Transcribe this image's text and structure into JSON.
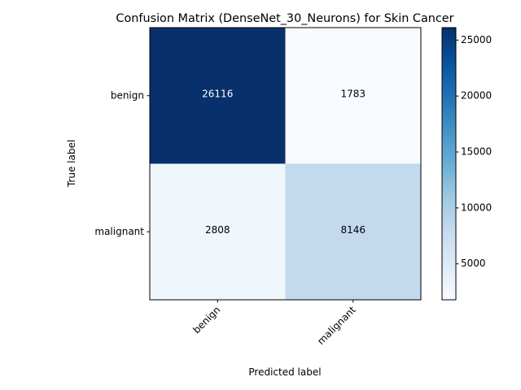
{
  "chart_data": {
    "type": "heatmap",
    "title": "Confusion Matrix (DenseNet_30_Neurons) for Skin Cancer",
    "xlabel": "Predicted label",
    "ylabel": "True label",
    "x_categories": [
      "benign",
      "malignant"
    ],
    "y_categories": [
      "benign",
      "malignant"
    ],
    "values": [
      [
        26116,
        1783
      ],
      [
        2808,
        8146
      ]
    ],
    "colormap": "Blues",
    "colorbar": {
      "range": [
        1783,
        26116
      ],
      "ticks": [
        5000,
        10000,
        15000,
        20000,
        25000
      ],
      "tick_labels": [
        "5000",
        "10000",
        "15000",
        "20000",
        "25000"
      ]
    },
    "x_tick_rotation": 45,
    "grid": false
  }
}
